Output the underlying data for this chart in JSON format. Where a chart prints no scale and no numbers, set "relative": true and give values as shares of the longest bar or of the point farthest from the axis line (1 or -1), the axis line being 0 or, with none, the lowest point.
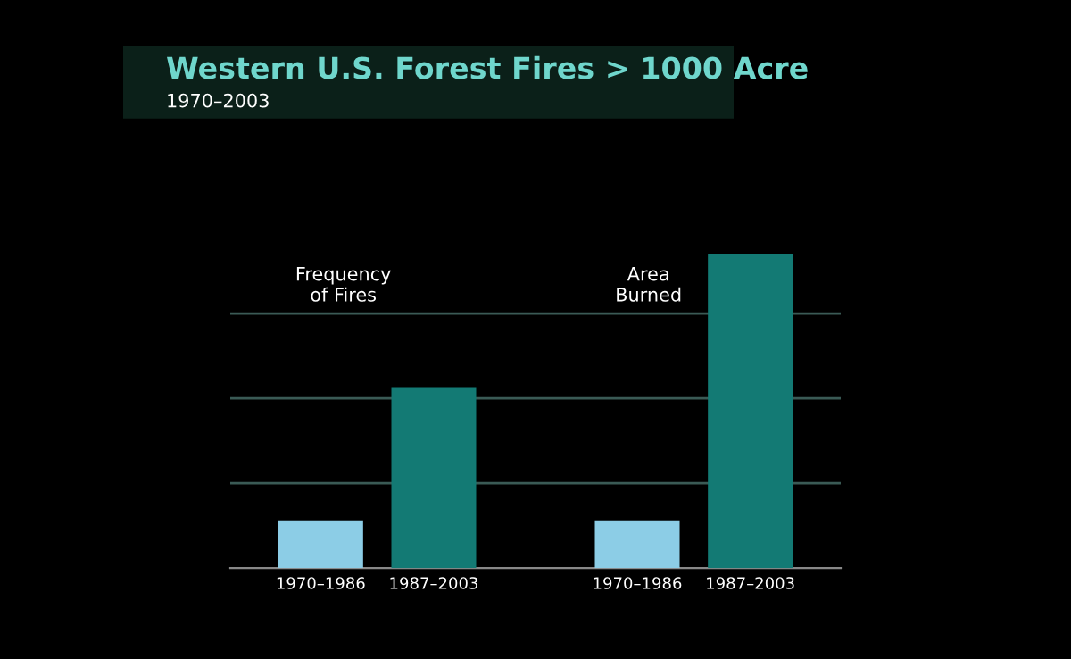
{
  "chart_data": {
    "type": "bar",
    "title": "Western U.S. Forest Fires > 1000 Acre",
    "subtitle": "1970–2003",
    "categories": [
      "1970–1986",
      "1987–2003",
      "1970–1986",
      "1987–2003"
    ],
    "values": [
      0.152,
      0.576,
      0.152,
      1
    ],
    "colors": [
      "#8ccde6",
      "#137a74",
      "#8ccde6",
      "#137a74"
    ],
    "relative": true,
    "grid": "y",
    "annotations": [
      "Frequency\nof Fires",
      "Area\nBurned"
    ]
  }
}
